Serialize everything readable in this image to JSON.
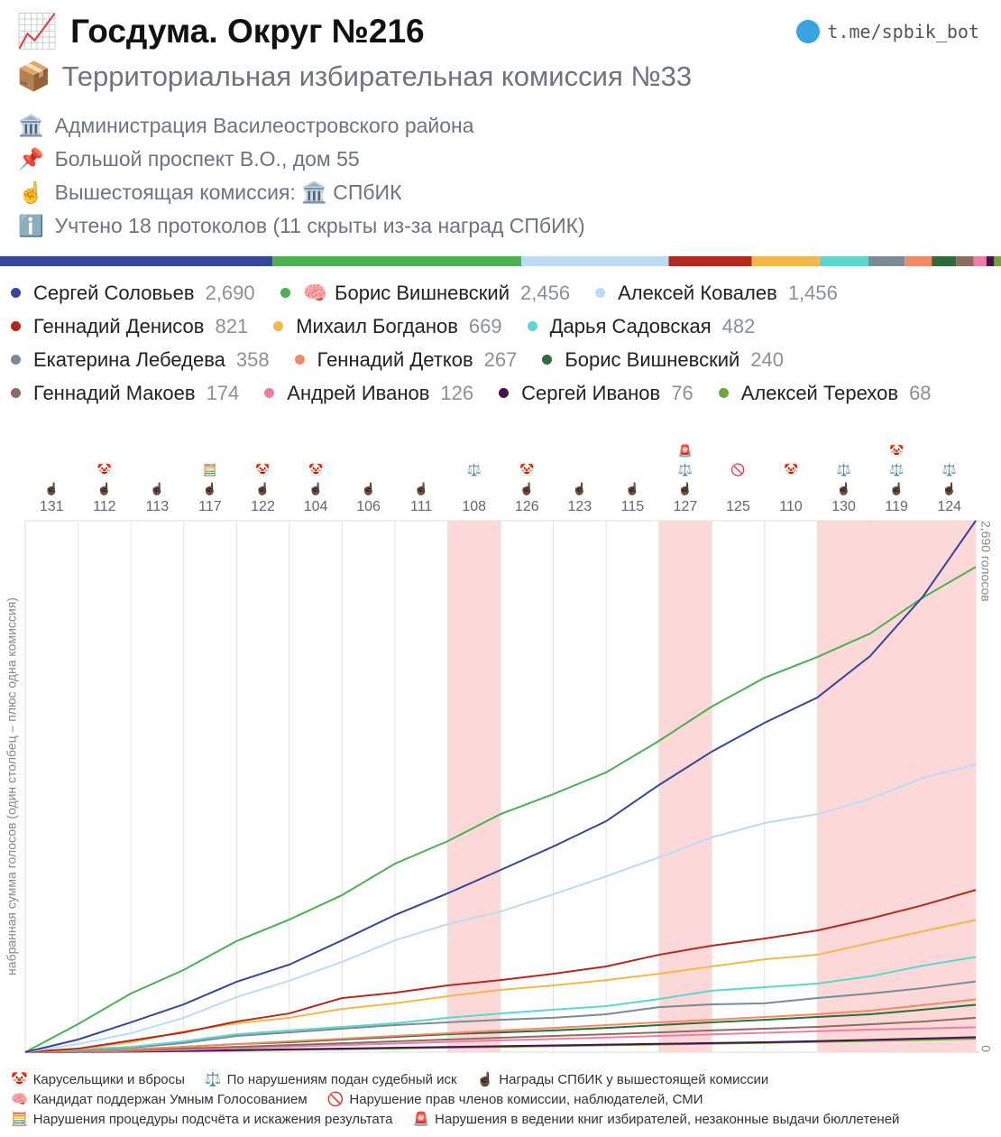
{
  "header": {
    "title_icon": "📈",
    "title": "Госдума. Округ №216",
    "link": "t.me/spbik_bot",
    "subtitle_icon": "📦",
    "subtitle": "Территориальная избирательная комиссия №33",
    "info": [
      {
        "icon": "🏛️",
        "text": "Администрация Василеостровского района"
      },
      {
        "icon": "📌",
        "text": "Большой проспект В.О., дом 55"
      },
      {
        "icon": "☝️",
        "text": "Вышестоящая комиссия: 🏛️ СПбИК"
      },
      {
        "icon": "ℹ️",
        "text": "Учтено 18 протоколов (11 скрыты из-за наград СПбИК)"
      }
    ]
  },
  "chart_data": {
    "type": "line",
    "y_label": "набранная сумма голосов (один столбец – плюс одна комиссия)",
    "ylim": [
      0,
      2690
    ],
    "yticks": [
      0,
      {
        "value": 2690,
        "label": "2,690 голосов"
      }
    ],
    "categories": [
      "131",
      "112",
      "113",
      "117",
      "122",
      "104",
      "106",
      "111",
      "108",
      "126",
      "123",
      "115",
      "127",
      "125",
      "110",
      "130",
      "119",
      "124"
    ],
    "columns": [
      {
        "award": "☝🏿"
      },
      {
        "icons": [
          "🤡"
        ],
        "award": "☝🏿"
      },
      {
        "award": "☝🏿"
      },
      {
        "icons": [
          "🧮"
        ],
        "award": "☝🏿"
      },
      {
        "icons": [
          "🤡"
        ],
        "award": "☝🏿"
      },
      {
        "icons": [
          "🤡"
        ],
        "award": "☝🏿"
      },
      {
        "award": "☝🏿"
      },
      {
        "award": "☝🏿"
      },
      {
        "icons": [
          "⚖️"
        ],
        "shaded": true
      },
      {
        "icons": [
          "🤡"
        ],
        "award": "☝🏿"
      },
      {
        "award": "☝🏿"
      },
      {
        "award": "☝🏿"
      },
      {
        "icons": [
          "🚨",
          "⚖️"
        ],
        "award": "☝🏿",
        "shaded": true
      },
      {
        "icons": [
          "🚫"
        ]
      },
      {
        "icons": [
          "🤡"
        ]
      },
      {
        "icons": [
          "⚖️"
        ],
        "award": "☝🏿",
        "shaded": true
      },
      {
        "icons": [
          "🤡",
          "⚖️"
        ],
        "award": "☝🏿",
        "shaded": true
      },
      {
        "icons": [
          "⚖️"
        ],
        "award": "☝🏿",
        "shaded": true
      }
    ],
    "series": [
      {
        "name": "Сергей Соловьев",
        "color": "#34479a",
        "total": 2690,
        "total_label": "2,690",
        "values": [
          64,
          151,
          242,
          356,
          443,
          566,
          694,
          804,
          922,
          1041,
          1169,
          1352,
          1521,
          1667,
          1795,
          2005,
          2306,
          2690
        ]
      },
      {
        "name": "Борис Вишневский",
        "badge": "🧠",
        "color": "#4caf50",
        "total": 2456,
        "total_label": "2,456",
        "values": [
          142,
          297,
          416,
          562,
          671,
          795,
          954,
          1068,
          1205,
          1306,
          1416,
          1575,
          1749,
          1895,
          2000,
          2119,
          2301,
          2456
        ]
      },
      {
        "name": "Алексей Ковалев",
        "color": "#bcdcf5",
        "total": 1456,
        "total_label": "1,456",
        "values": [
          41,
          96,
          174,
          279,
          361,
          457,
          566,
          648,
          712,
          799,
          890,
          986,
          1087,
          1160,
          1205,
          1283,
          1388,
          1456
        ]
      },
      {
        "name": "Геннадий Денисов",
        "color": "#b02a1e",
        "total": 821,
        "values": [
          18,
          59,
          100,
          155,
          196,
          274,
          301,
          338,
          365,
          397,
          434,
          493,
          539,
          575,
          616,
          676,
          744,
          821
        ]
      },
      {
        "name": "Михаил Богданов",
        "color": "#f2b84b",
        "total": 669,
        "values": [
          14,
          50,
          105,
          146,
          174,
          219,
          247,
          283,
          315,
          338,
          365,
          397,
          434,
          470,
          493,
          553,
          612,
          669
        ]
      },
      {
        "name": "Дарья Садовская",
        "color": "#5dd6d0",
        "total": 482,
        "values": [
          14,
          27,
          55,
          91,
          110,
          128,
          146,
          174,
          196,
          215,
          233,
          269,
          311,
          329,
          347,
          384,
          438,
          482
        ]
      },
      {
        "name": "Екатерина Лебедева",
        "color": "#7a8a96",
        "total": 358,
        "values": [
          9,
          23,
          46,
          82,
          100,
          119,
          137,
          151,
          164,
          174,
          192,
          228,
          242,
          247,
          274,
          297,
          324,
          358
        ]
      },
      {
        "name": "Геннадий Детков",
        "color": "#f28a66",
        "total": 267,
        "values": [
          5,
          14,
          27,
          41,
          55,
          68,
          82,
          96,
          110,
          123,
          137,
          151,
          164,
          178,
          192,
          210,
          238,
          267
        ]
      },
      {
        "name": "Борис Вишневский",
        "color": "#2e6b3a",
        "total": 240,
        "values": [
          5,
          14,
          27,
          41,
          50,
          64,
          77,
          91,
          100,
          110,
          123,
          137,
          151,
          164,
          178,
          192,
          215,
          240
        ]
      },
      {
        "name": "Геннадий Макоев",
        "color": "#8a6d60",
        "total": 174,
        "values": [
          4,
          10,
          18,
          27,
          36,
          45,
          55,
          64,
          73,
          82,
          91,
          100,
          110,
          119,
          128,
          141,
          155,
          174
        ]
      },
      {
        "name": "Андрей Иванов",
        "color": "#f07ca8",
        "total": 126,
        "values": [
          2,
          6,
          12,
          20,
          28,
          36,
          44,
          52,
          60,
          67,
          74,
          82,
          90,
          98,
          106,
          114,
          120,
          126
        ]
      },
      {
        "name": "Сергей Иванов",
        "color": "#4a1150",
        "total": 76,
        "values": [
          1,
          3,
          6,
          10,
          14,
          18,
          22,
          26,
          30,
          34,
          38,
          42,
          46,
          50,
          56,
          62,
          69,
          76
        ]
      },
      {
        "name": "Алексей Терехов",
        "color": "#6aa83a",
        "total": 68,
        "values": [
          1,
          3,
          5,
          8,
          12,
          15,
          19,
          23,
          27,
          31,
          35,
          39,
          43,
          47,
          52,
          57,
          62,
          68
        ]
      }
    ],
    "legend_keys": [
      {
        "icon": "🤡",
        "text": "Карусельщики и вбросы"
      },
      {
        "icon": "⚖️",
        "text": "По нарушениям подан судебный иск"
      },
      {
        "icon": "☝🏿",
        "text": "Награды СПбИК у вышестоящей комиссии"
      },
      {
        "icon": "🧠",
        "text": "Кандидат поддержан Умным Голосованием"
      },
      {
        "icon": "🚫",
        "text": "Нарушение прав членов комиссии, наблюдателей, СМИ"
      },
      {
        "icon": "🧮",
        "text": "Нарушения процедуры подсчёта и искажения результата"
      },
      {
        "icon": "🚨",
        "text": "Нарушения в ведении книг избирателей, незаконные выдачи бюллетеней"
      }
    ]
  }
}
